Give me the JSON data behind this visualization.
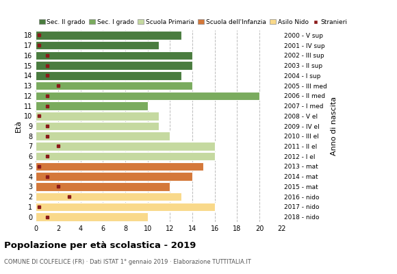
{
  "ages": [
    18,
    17,
    16,
    15,
    14,
    13,
    12,
    11,
    10,
    9,
    8,
    7,
    6,
    5,
    4,
    3,
    2,
    1,
    0
  ],
  "years": [
    "2000 - V sup",
    "2001 - IV sup",
    "2002 - III sup",
    "2003 - II sup",
    "2004 - I sup",
    "2005 - III med",
    "2006 - II med",
    "2007 - I med",
    "2008 - V el",
    "2009 - IV el",
    "2010 - III el",
    "2011 - II el",
    "2012 - I el",
    "2013 - mat",
    "2014 - mat",
    "2015 - mat",
    "2016 - nido",
    "2017 - nido",
    "2018 - nido"
  ],
  "bar_values": [
    13,
    11,
    14,
    14,
    13,
    14,
    20,
    10,
    11,
    11,
    12,
    16,
    16,
    15,
    14,
    12,
    13,
    16,
    10
  ],
  "stranieri": [
    0.3,
    0.3,
    1,
    1,
    1,
    2,
    1,
    1,
    0.3,
    1,
    1,
    2,
    1,
    0.3,
    1,
    2,
    3,
    0.3,
    1
  ],
  "categories": {
    "sec2": {
      "ages": [
        18,
        17,
        16,
        15,
        14
      ],
      "color": "#4a7c3f",
      "label": "Sec. II grado"
    },
    "sec1": {
      "ages": [
        13,
        12,
        11
      ],
      "color": "#7aab5e",
      "label": "Sec. I grado"
    },
    "primaria": {
      "ages": [
        10,
        9,
        8,
        7,
        6
      ],
      "color": "#c5d9a0",
      "label": "Scuola Primaria"
    },
    "infanzia": {
      "ages": [
        5,
        4,
        3
      ],
      "color": "#d4783a",
      "label": "Scuola dell'Infanzia"
    },
    "nido": {
      "ages": [
        2,
        1,
        0
      ],
      "color": "#f9d98a",
      "label": "Asilo Nido"
    }
  },
  "stranieri_color": "#8b1a1a",
  "xlim": [
    0,
    22
  ],
  "xticks": [
    0,
    2,
    4,
    6,
    8,
    10,
    12,
    14,
    16,
    18,
    20,
    22
  ],
  "title": "Popolazione per età scolastica - 2019",
  "subtitle": "COMUNE DI COLFELICE (FR) · Dati ISTAT 1° gennaio 2019 · Elaborazione TUTTITALIA.IT",
  "ylabel": "Età",
  "ylabel2": "Anno di nascita",
  "bg_color": "#ffffff",
  "grid_color": "#bbbbbb"
}
